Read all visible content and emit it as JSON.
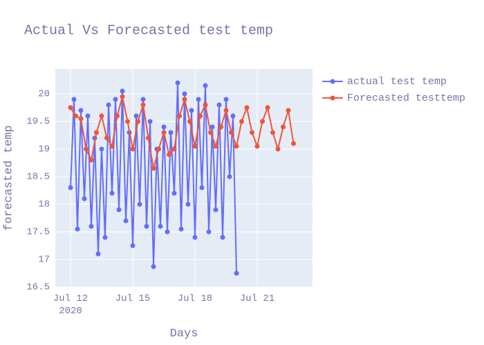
{
  "chart_data": {
    "type": "line",
    "title": "Actual Vs Forecasted test temp",
    "x_label": "Days",
    "y_label": "forecasted temp",
    "xlim": [
      "2020-07-11T06:24",
      "2020-07-23T16:00"
    ],
    "ylim": [
      16.5,
      20.45
    ],
    "xticks": [
      {
        "value": "2020-07-12T00:00",
        "label": "Jul 12\n2020"
      },
      {
        "value": "2020-07-15T00:00",
        "label": "Jul 15"
      },
      {
        "value": "2020-07-18T00:00",
        "label": "Jul 18"
      },
      {
        "value": "2020-07-21T00:00",
        "label": "Jul 21"
      }
    ],
    "yticks": [
      16.5,
      17,
      17.5,
      18,
      18.5,
      19,
      19.5,
      20
    ],
    "grid": true,
    "legend": "right",
    "series": [
      {
        "name": "actual test temp",
        "color": "#636efa",
        "x": [
          "2020-07-12T00:00",
          "2020-07-12T04:00",
          "2020-07-12T08:00",
          "2020-07-12T12:00",
          "2020-07-12T16:00",
          "2020-07-12T20:00",
          "2020-07-13T00:00",
          "2020-07-13T04:00",
          "2020-07-13T08:00",
          "2020-07-13T12:00",
          "2020-07-13T16:00",
          "2020-07-13T20:00",
          "2020-07-14T00:00",
          "2020-07-14T04:00",
          "2020-07-14T08:00",
          "2020-07-14T12:00",
          "2020-07-14T16:00",
          "2020-07-14T20:00",
          "2020-07-15T00:00",
          "2020-07-15T04:00",
          "2020-07-15T08:00",
          "2020-07-15T12:00",
          "2020-07-15T16:00",
          "2020-07-15T20:00",
          "2020-07-16T00:00",
          "2020-07-16T04:00",
          "2020-07-16T08:00",
          "2020-07-16T12:00",
          "2020-07-16T16:00",
          "2020-07-16T20:00",
          "2020-07-17T00:00",
          "2020-07-17T04:00",
          "2020-07-17T08:00",
          "2020-07-17T12:00",
          "2020-07-17T16:00",
          "2020-07-17T20:00",
          "2020-07-18T00:00",
          "2020-07-18T04:00",
          "2020-07-18T08:00",
          "2020-07-18T12:00",
          "2020-07-18T16:00",
          "2020-07-18T20:00",
          "2020-07-19T00:00",
          "2020-07-19T04:00",
          "2020-07-19T08:00",
          "2020-07-19T12:00",
          "2020-07-19T16:00",
          "2020-07-19T20:00",
          "2020-07-20T00:00"
        ],
        "values": [
          18.3,
          19.9,
          17.55,
          19.7,
          18.1,
          19.6,
          17.6,
          19.2,
          17.1,
          19.0,
          17.4,
          19.8,
          18.2,
          19.9,
          17.9,
          20.05,
          17.7,
          19.3,
          17.25,
          19.6,
          18.0,
          19.9,
          17.6,
          19.5,
          16.87,
          19.0,
          17.6,
          19.4,
          17.5,
          19.3,
          18.2,
          20.2,
          17.55,
          20.0,
          18.0,
          19.7,
          17.4,
          19.9,
          18.3,
          20.15,
          17.5,
          19.4,
          17.9,
          19.8,
          17.4,
          19.9,
          18.5,
          19.6,
          16.75
        ]
      },
      {
        "name": "Forecasted testtemp",
        "color": "#ef553b",
        "x": [
          "2020-07-12T00:00",
          "2020-07-12T06:00",
          "2020-07-12T12:00",
          "2020-07-12T18:00",
          "2020-07-13T00:00",
          "2020-07-13T06:00",
          "2020-07-13T12:00",
          "2020-07-13T18:00",
          "2020-07-14T00:00",
          "2020-07-14T06:00",
          "2020-07-14T12:00",
          "2020-07-14T18:00",
          "2020-07-15T00:00",
          "2020-07-15T06:00",
          "2020-07-15T12:00",
          "2020-07-15T18:00",
          "2020-07-16T00:00",
          "2020-07-16T06:00",
          "2020-07-16T12:00",
          "2020-07-16T18:00",
          "2020-07-17T00:00",
          "2020-07-17T06:00",
          "2020-07-17T12:00",
          "2020-07-17T18:00",
          "2020-07-18T00:00",
          "2020-07-18T06:00",
          "2020-07-18T12:00",
          "2020-07-18T18:00",
          "2020-07-19T00:00",
          "2020-07-19T06:00",
          "2020-07-19T12:00",
          "2020-07-19T18:00",
          "2020-07-20T00:00",
          "2020-07-20T06:00",
          "2020-07-20T12:00",
          "2020-07-20T18:00",
          "2020-07-21T00:00",
          "2020-07-21T06:00",
          "2020-07-21T12:00",
          "2020-07-21T18:00",
          "2020-07-22T00:00",
          "2020-07-22T06:00",
          "2020-07-22T12:00",
          "2020-07-22T18:00"
        ],
        "values": [
          19.75,
          19.6,
          19.55,
          19.0,
          18.8,
          19.3,
          19.6,
          19.2,
          19.05,
          19.6,
          19.95,
          19.5,
          19.0,
          19.5,
          19.8,
          19.2,
          18.65,
          19.0,
          19.3,
          18.9,
          19.0,
          19.6,
          19.9,
          19.5,
          19.05,
          19.6,
          19.8,
          19.3,
          19.05,
          19.4,
          19.7,
          19.3,
          19.05,
          19.5,
          19.75,
          19.3,
          19.05,
          19.5,
          19.75,
          19.3,
          19.0,
          19.4,
          19.7,
          19.1
        ]
      }
    ]
  }
}
